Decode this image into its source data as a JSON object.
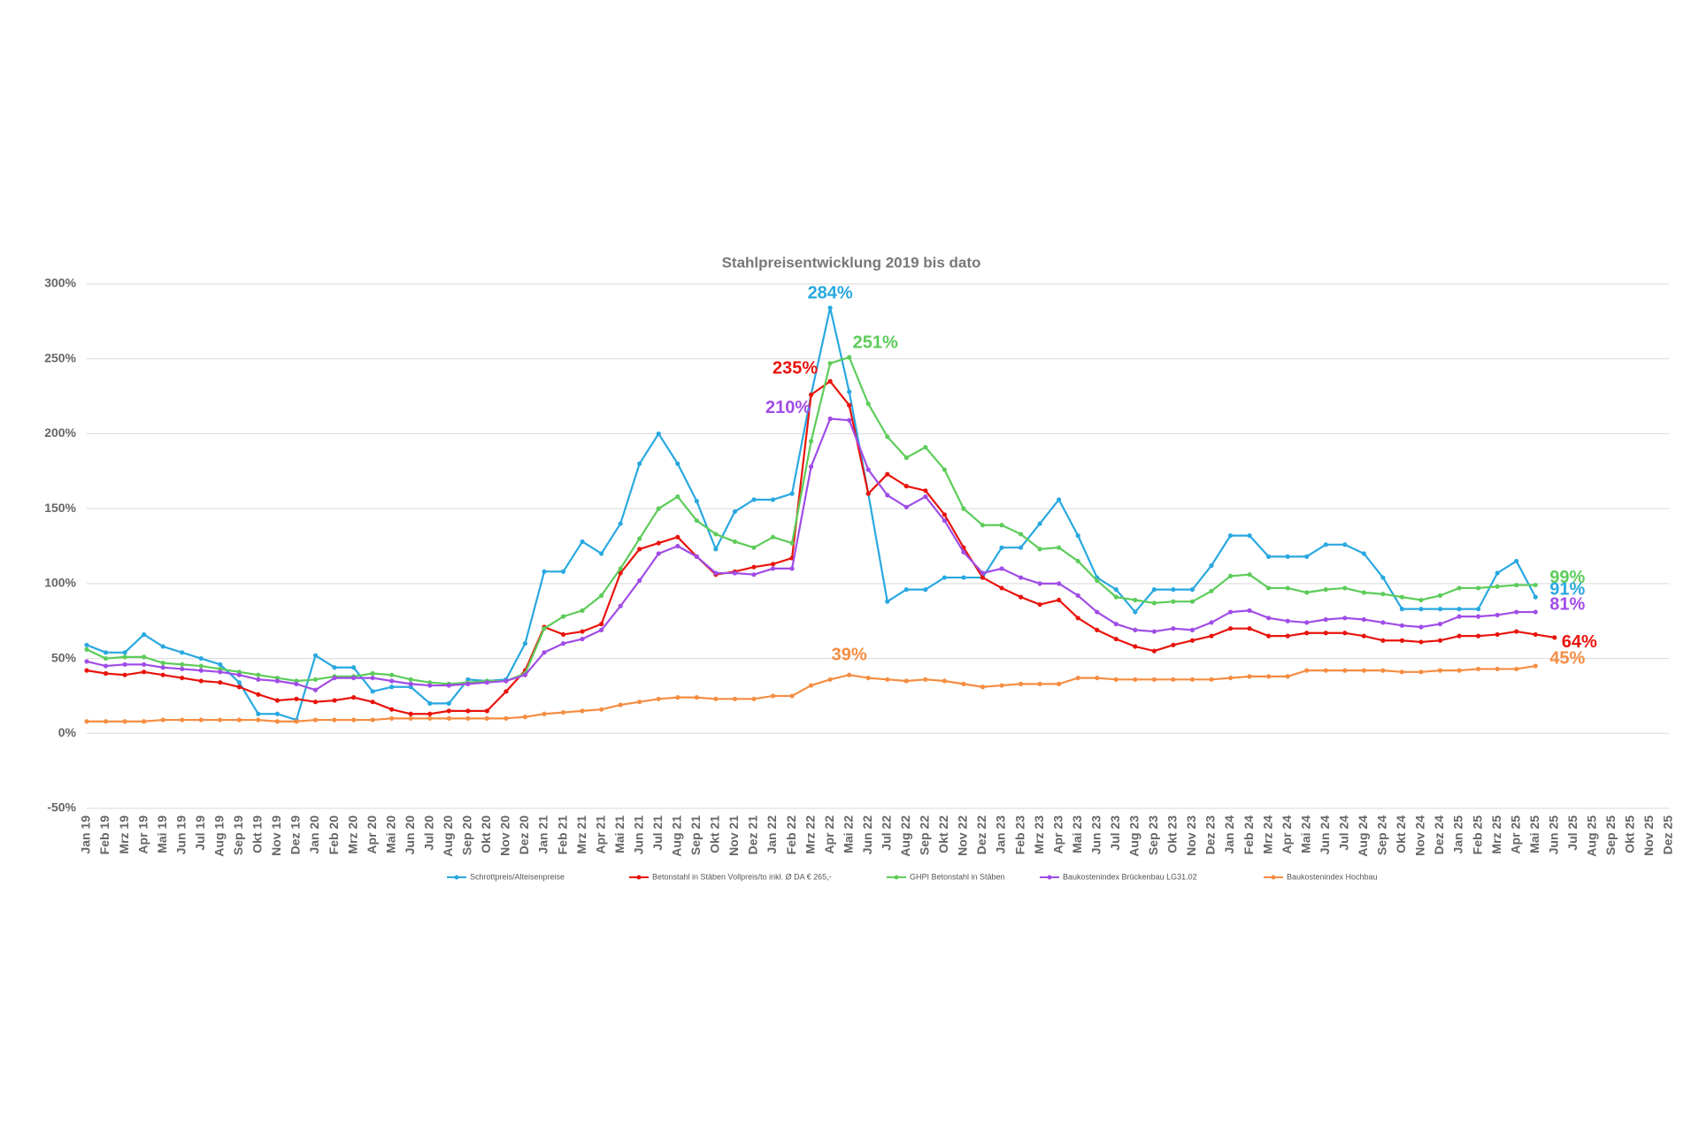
{
  "chart_data": {
    "type": "line",
    "title": "Stahlpreisentwicklung 2019 bis dato",
    "categories": [
      "Jan 19",
      "Feb 19",
      "Mrz 19",
      "Apr 19",
      "Mai 19",
      "Jun 19",
      "Jul 19",
      "Aug 19",
      "Sep 19",
      "Okt 19",
      "Nov 19",
      "Dez 19",
      "Jan 20",
      "Feb 20",
      "Mrz 20",
      "Apr 20",
      "Mai 20",
      "Jun 20",
      "Jul 20",
      "Aug 20",
      "Sep 20",
      "Okt 20",
      "Nov 20",
      "Dez 20",
      "Jan 21",
      "Feb 21",
      "Mrz 21",
      "Apr 21",
      "Mai 21",
      "Jun 21",
      "Jul 21",
      "Aug 21",
      "Sep 21",
      "Okt 21",
      "Nov 21",
      "Dez 21",
      "Jan 22",
      "Feb 22",
      "Mrz 22",
      "Apr 22",
      "Mai 22",
      "Jun 22",
      "Jul 22",
      "Aug 22",
      "Sep 22",
      "Okt 22",
      "Nov 22",
      "Dez 22",
      "Jan 23",
      "Feb 23",
      "Mrz 23",
      "Apr 23",
      "Mai 23",
      "Jun 23",
      "Jul 23",
      "Aug 23",
      "Sep 23",
      "Okt 23",
      "Nov 23",
      "Dez 23",
      "Jan 24",
      "Feb 24",
      "Mrz 24",
      "Apr 24",
      "Mai 24",
      "Jun 24",
      "Jul 24",
      "Aug 24",
      "Sep 24",
      "Okt 24",
      "Nov 24",
      "Dez 24",
      "Jan 25",
      "Feb 25",
      "Mrz 25",
      "Apr 25",
      "Mai 25",
      "Jun 25",
      "Jul 25",
      "Aug 25",
      "Sep 25",
      "Okt 25",
      "Nov 25",
      "Dez 25"
    ],
    "ylim": [
      -50,
      300
    ],
    "yticks": [
      {
        "value": -50,
        "label": "-50%"
      },
      {
        "value": 0,
        "label": "0%"
      },
      {
        "value": 50,
        "label": "50%"
      },
      {
        "value": 100,
        "label": "100%"
      },
      {
        "value": 150,
        "label": "150%"
      },
      {
        "value": 200,
        "label": "200%"
      },
      {
        "value": 250,
        "label": "250%"
      },
      {
        "value": 300,
        "label": "300%"
      }
    ],
    "grid": true,
    "legend": "bottom",
    "series": [
      {
        "name": "Schrottpreis/Alteisenpreise",
        "color": "#29a8e0",
        "values": [
          59,
          54,
          54,
          66,
          58,
          54,
          50,
          46,
          34,
          13,
          13,
          9,
          52,
          44,
          44,
          28,
          31,
          31,
          20,
          20,
          36,
          35,
          36,
          60,
          108,
          108,
          128,
          120,
          140,
          180,
          200,
          180,
          155,
          123,
          148,
          156,
          156,
          160,
          226,
          284,
          228,
          160,
          88,
          96,
          96,
          104,
          104,
          104,
          124,
          124,
          140,
          156,
          132,
          104,
          96,
          81,
          96,
          96,
          96,
          112,
          132,
          132,
          118,
          118,
          118,
          126,
          126,
          120,
          104,
          83,
          83,
          83,
          83,
          83,
          107,
          115,
          91,
          null,
          null,
          null,
          null,
          null,
          null,
          null
        ],
        "value_labels": [
          null,
          null,
          null,
          null,
          null,
          null,
          null,
          null,
          null,
          null,
          null,
          null,
          null,
          null,
          null,
          null,
          null,
          null,
          null,
          null,
          null,
          null,
          null,
          null,
          null,
          null,
          null,
          null,
          null,
          null,
          null,
          null,
          null,
          null,
          null,
          null,
          null,
          null,
          null,
          "284%",
          null,
          null,
          null,
          null,
          null,
          null,
          null,
          null,
          null,
          null,
          null,
          null,
          null,
          null,
          null,
          null,
          null,
          null,
          null,
          null,
          null,
          null,
          null,
          null,
          null,
          null,
          null,
          null,
          null,
          null,
          null,
          null,
          null,
          null,
          null,
          null,
          "91%",
          null,
          null,
          null,
          null,
          null,
          null,
          null
        ]
      },
      {
        "name": "Betonstahl in Stäben Vollpreis/to inkl. Ø DA € 265,-",
        "color": "#e8140c",
        "values": [
          42,
          40,
          39,
          41,
          39,
          37,
          35,
          34,
          31,
          26,
          22,
          23,
          21,
          22,
          24,
          21,
          16,
          13,
          13,
          15,
          15,
          15,
          28,
          42,
          71,
          66,
          68,
          73,
          107,
          123,
          127,
          131,
          118,
          106,
          108,
          111,
          113,
          117,
          226,
          235,
          219,
          160,
          173,
          165,
          162,
          146,
          124,
          104,
          97,
          91,
          86,
          89,
          77,
          69,
          63,
          58,
          55,
          59,
          62,
          65,
          70,
          70,
          65,
          65,
          67,
          67,
          67,
          65,
          62,
          62,
          61,
          62,
          65,
          65,
          66,
          68,
          66,
          64,
          null,
          null,
          null,
          null,
          null,
          null
        ],
        "value_labels": [
          null,
          null,
          null,
          null,
          null,
          null,
          null,
          null,
          null,
          null,
          null,
          null,
          null,
          null,
          null,
          null,
          null,
          null,
          null,
          null,
          null,
          null,
          null,
          null,
          null,
          null,
          null,
          null,
          null,
          null,
          null,
          null,
          null,
          null,
          null,
          null,
          null,
          null,
          null,
          "235%",
          null,
          null,
          null,
          null,
          null,
          null,
          null,
          null,
          null,
          null,
          null,
          null,
          null,
          null,
          null,
          null,
          null,
          null,
          null,
          null,
          null,
          null,
          null,
          null,
          null,
          null,
          null,
          null,
          null,
          null,
          null,
          null,
          null,
          null,
          null,
          null,
          null,
          "64%",
          null,
          null,
          null,
          null,
          null,
          null
        ]
      },
      {
        "name": "GHPI Betonstahl in Stäben",
        "color": "#5dcc5a",
        "values": [
          56,
          50,
          51,
          51,
          47,
          46,
          45,
          43,
          41,
          39,
          37,
          35,
          36,
          38,
          38,
          40,
          39,
          36,
          34,
          33,
          34,
          35,
          35,
          40,
          70,
          78,
          82,
          92,
          110,
          130,
          150,
          158,
          142,
          133,
          128,
          124,
          131,
          127,
          195,
          247,
          251,
          220,
          198,
          184,
          191,
          176,
          150,
          139,
          139,
          133,
          123,
          124,
          115,
          102,
          91,
          89,
          87,
          88,
          88,
          95,
          105,
          106,
          97,
          97,
          94,
          96,
          97,
          94,
          93,
          91,
          89,
          92,
          97,
          97,
          98,
          99,
          99,
          null,
          null,
          null,
          null,
          null,
          null,
          null
        ],
        "value_labels": [
          null,
          null,
          null,
          null,
          null,
          null,
          null,
          null,
          null,
          null,
          null,
          null,
          null,
          null,
          null,
          null,
          null,
          null,
          null,
          null,
          null,
          null,
          null,
          null,
          null,
          null,
          null,
          null,
          null,
          null,
          null,
          null,
          null,
          null,
          null,
          null,
          null,
          null,
          null,
          null,
          "251%",
          null,
          null,
          null,
          null,
          null,
          null,
          null,
          null,
          null,
          null,
          null,
          null,
          null,
          null,
          null,
          null,
          null,
          null,
          null,
          null,
          null,
          null,
          null,
          null,
          null,
          null,
          null,
          null,
          null,
          null,
          null,
          null,
          null,
          null,
          null,
          "99%",
          null,
          null,
          null,
          null,
          null,
          null,
          null
        ]
      },
      {
        "name": "Baukostenindex Brückenbau LG31.02",
        "color": "#a04de6",
        "values": [
          48,
          45,
          46,
          46,
          44,
          43,
          42,
          41,
          39,
          36,
          35,
          33,
          29,
          37,
          37,
          37,
          35,
          33,
          32,
          32,
          33,
          34,
          35,
          39,
          54,
          60,
          63,
          69,
          85,
          102,
          120,
          125,
          118,
          107,
          107,
          106,
          110,
          110,
          178,
          210,
          209,
          176,
          159,
          151,
          158,
          142,
          121,
          107,
          110,
          104,
          100,
          100,
          92,
          81,
          73,
          69,
          68,
          70,
          69,
          74,
          81,
          82,
          77,
          75,
          74,
          76,
          77,
          76,
          74,
          72,
          71,
          73,
          78,
          78,
          79,
          81,
          81,
          null,
          null,
          null,
          null,
          null,
          null,
          null
        ],
        "value_labels": [
          null,
          null,
          null,
          null,
          null,
          null,
          null,
          null,
          null,
          null,
          null,
          null,
          null,
          null,
          null,
          null,
          null,
          null,
          null,
          null,
          null,
          null,
          null,
          null,
          null,
          null,
          null,
          null,
          null,
          null,
          null,
          null,
          null,
          null,
          null,
          null,
          null,
          null,
          null,
          "210%",
          null,
          null,
          null,
          null,
          null,
          null,
          null,
          null,
          null,
          null,
          null,
          null,
          null,
          null,
          null,
          null,
          null,
          null,
          null,
          null,
          null,
          null,
          null,
          null,
          null,
          null,
          null,
          null,
          null,
          null,
          null,
          null,
          null,
          null,
          null,
          null,
          "81%",
          null,
          null,
          null,
          null,
          null,
          null,
          null
        ]
      },
      {
        "name": "Baukostenindex Hochbau",
        "color": "#f58d42",
        "values": [
          8,
          8,
          8,
          8,
          9,
          9,
          9,
          9,
          9,
          9,
          8,
          8,
          9,
          9,
          9,
          9,
          10,
          10,
          10,
          10,
          10,
          10,
          10,
          11,
          13,
          14,
          15,
          16,
          19,
          21,
          23,
          24,
          24,
          23,
          23,
          23,
          25,
          25,
          32,
          36,
          39,
          37,
          36,
          35,
          36,
          35,
          33,
          31,
          32,
          33,
          33,
          33,
          37,
          37,
          36,
          36,
          36,
          36,
          36,
          36,
          37,
          38,
          38,
          38,
          42,
          42,
          42,
          42,
          42,
          41,
          41,
          42,
          42,
          43,
          43,
          43,
          45,
          null,
          null,
          null,
          null,
          null,
          null,
          null
        ],
        "value_labels": [
          null,
          null,
          null,
          null,
          null,
          null,
          null,
          null,
          null,
          null,
          null,
          null,
          null,
          null,
          null,
          null,
          null,
          null,
          null,
          null,
          null,
          null,
          null,
          null,
          null,
          null,
          null,
          null,
          null,
          null,
          null,
          null,
          null,
          null,
          null,
          null,
          null,
          null,
          null,
          null,
          "39%",
          null,
          null,
          null,
          null,
          null,
          null,
          null,
          null,
          null,
          null,
          null,
          null,
          null,
          null,
          null,
          null,
          null,
          null,
          null,
          null,
          null,
          null,
          null,
          null,
          null,
          null,
          null,
          null,
          null,
          null,
          null,
          null,
          null,
          null,
          null,
          "45%",
          null,
          null,
          null,
          null,
          null,
          null,
          null
        ]
      }
    ]
  }
}
